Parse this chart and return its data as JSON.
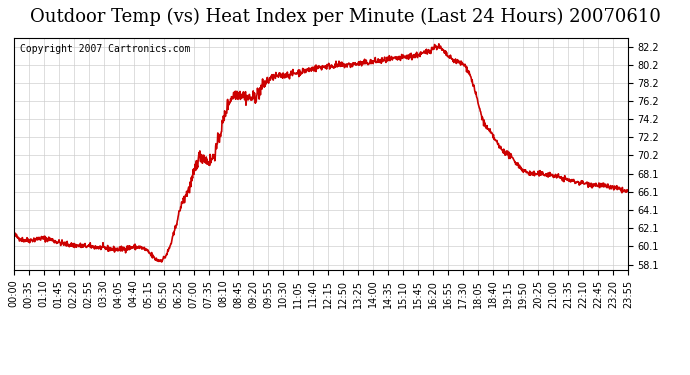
{
  "title": "Outdoor Temp (vs) Heat Index per Minute (Last 24 Hours) 20070610",
  "copyright": "Copyright 2007 Cartronics.com",
  "line_color": "#cc0000",
  "background_color": "#ffffff",
  "grid_color": "#cccccc",
  "ylim": [
    57.5,
    83.2
  ],
  "yticks": [
    58.1,
    60.1,
    62.1,
    64.1,
    66.1,
    68.1,
    70.2,
    72.2,
    74.2,
    76.2,
    78.2,
    80.2,
    82.2
  ],
  "xtick_labels": [
    "00:00",
    "00:35",
    "01:10",
    "01:45",
    "02:20",
    "02:55",
    "03:30",
    "04:05",
    "04:40",
    "05:15",
    "05:50",
    "06:25",
    "07:00",
    "07:35",
    "08:10",
    "08:45",
    "09:20",
    "09:55",
    "10:30",
    "11:05",
    "11:40",
    "12:15",
    "12:50",
    "13:25",
    "14:00",
    "14:35",
    "15:10",
    "15:45",
    "16:20",
    "16:55",
    "17:30",
    "18:05",
    "18:40",
    "19:15",
    "19:50",
    "20:25",
    "21:00",
    "21:35",
    "22:10",
    "22:45",
    "23:20",
    "23:55"
  ],
  "title_fontsize": 13,
  "copyright_fontsize": 7,
  "tick_fontsize": 7,
  "line_width": 1.2,
  "control_x": [
    0,
    35,
    70,
    110,
    150,
    200,
    250,
    315,
    330,
    355,
    375,
    395,
    415,
    435,
    455,
    475,
    500,
    530,
    560,
    590,
    630,
    680,
    730,
    790,
    840,
    890,
    940,
    975,
    995,
    1010,
    1040,
    1065,
    1085,
    1100,
    1120,
    1140,
    1160,
    1195,
    1245,
    1295,
    1380,
    1439
  ],
  "control_y": [
    61.5,
    60.8,
    61.0,
    60.5,
    60.2,
    60.0,
    59.8,
    59.5,
    58.8,
    59.0,
    61.5,
    65.0,
    67.0,
    70.0,
    69.5,
    71.0,
    75.5,
    77.0,
    76.5,
    78.2,
    79.0,
    79.5,
    80.0,
    80.2,
    80.5,
    80.8,
    81.2,
    81.8,
    82.2,
    81.5,
    80.5,
    79.5,
    76.5,
    74.0,
    72.5,
    71.0,
    70.2,
    68.5,
    68.1,
    67.5,
    66.8,
    66.1
  ]
}
